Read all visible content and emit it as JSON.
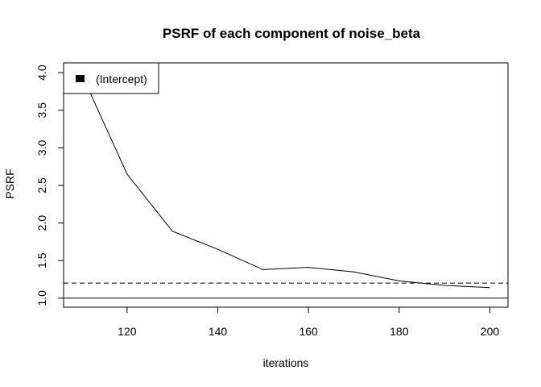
{
  "chart_data": {
    "type": "line",
    "title": "PSRF of each component of noise_beta",
    "xlabel": "iterations",
    "ylabel": "PSRF",
    "xlim": [
      106,
      204
    ],
    "ylim": [
      0.88,
      4.13
    ],
    "x_ticks": [
      120,
      140,
      160,
      180,
      200
    ],
    "y_ticks": [
      1.0,
      1.5,
      2.0,
      2.5,
      3.0,
      3.5,
      4.0
    ],
    "x_tick_labels": [
      "120",
      "140",
      "160",
      "180",
      "200"
    ],
    "y_tick_labels": [
      "1.0",
      "1.5",
      "2.0",
      "2.5",
      "3.0",
      "3.5",
      "4.0"
    ],
    "series": [
      {
        "name": "(Intercept)",
        "x": [
          110,
          120,
          130,
          140,
          150,
          160,
          170,
          180,
          190,
          200
        ],
        "y": [
          3.98,
          2.65,
          1.89,
          1.65,
          1.38,
          1.41,
          1.35,
          1.23,
          1.17,
          1.14
        ],
        "color": "#000000"
      }
    ],
    "reference_lines": [
      {
        "y": 1.0,
        "style": "solid"
      },
      {
        "y": 1.2,
        "style": "dashed"
      }
    ],
    "legend": {
      "position": "top-left",
      "entries": [
        "(Intercept)"
      ]
    },
    "grid": false
  }
}
